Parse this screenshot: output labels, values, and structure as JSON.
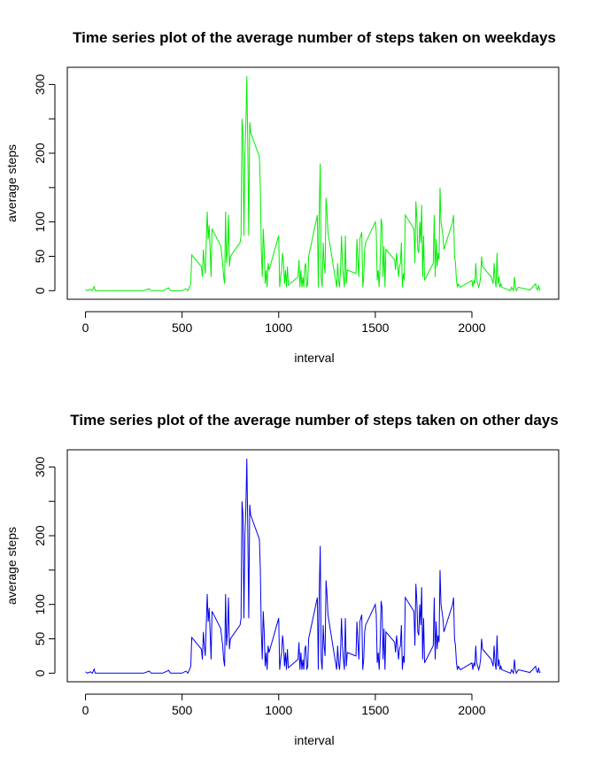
{
  "chart_data": [
    {
      "type": "line",
      "title": "Time series plot of the average number of steps taken on weekdays",
      "xlabel": "interval",
      "ylabel": "average steps",
      "xlim": [
        -94.2,
        2449.2
      ],
      "ylim": [
        -12.5,
        325
      ],
      "xticks": [
        0,
        500,
        1000,
        1500,
        2000
      ],
      "yticks": [
        0,
        50,
        100,
        {
          "value": 150,
          "label": null
        },
        200,
        {
          "value": 250,
          "label": null
        },
        300
      ],
      "series": [
        {
          "color": "#00ee00",
          "x": [
            0,
            10,
            25,
            35,
            45,
            50,
            100,
            200,
            300,
            330,
            340,
            400,
            430,
            440,
            500,
            520,
            530,
            545,
            550,
            600,
            605,
            610,
            615,
            620,
            630,
            635,
            640,
            645,
            650,
            655,
            700,
            710,
            715,
            720,
            725,
            730,
            735,
            740,
            745,
            750,
            800,
            805,
            810,
            815,
            820,
            825,
            830,
            835,
            840,
            845,
            850,
            855,
            900,
            905,
            910,
            915,
            920,
            925,
            930,
            935,
            940,
            945,
            950,
            1000,
            1005,
            1010,
            1015,
            1020,
            1025,
            1030,
            1035,
            1040,
            1045,
            1050,
            1100,
            1105,
            1110,
            1115,
            1120,
            1125,
            1130,
            1135,
            1140,
            1145,
            1150,
            1155,
            1200,
            1205,
            1210,
            1215,
            1220,
            1225,
            1230,
            1235,
            1240,
            1245,
            1250,
            1255,
            1300,
            1305,
            1310,
            1315,
            1320,
            1325,
            1330,
            1335,
            1340,
            1345,
            1350,
            1355,
            1400,
            1405,
            1410,
            1415,
            1420,
            1425,
            1430,
            1435,
            1440,
            1445,
            1450,
            1500,
            1505,
            1510,
            1515,
            1520,
            1525,
            1530,
            1535,
            1540,
            1545,
            1550,
            1555,
            1600,
            1605,
            1610,
            1615,
            1620,
            1625,
            1630,
            1635,
            1640,
            1645,
            1650,
            1655,
            1700,
            1705,
            1710,
            1715,
            1720,
            1725,
            1730,
            1735,
            1740,
            1745,
            1750,
            1755,
            1800,
            1805,
            1810,
            1815,
            1820,
            1825,
            1830,
            1835,
            1840,
            1845,
            1850,
            1855,
            1900,
            1905,
            1910,
            1915,
            1920,
            1925,
            1930,
            1940,
            2000,
            2005,
            2010,
            2015,
            2020,
            2025,
            2030,
            2035,
            2040,
            2045,
            2050,
            2055,
            2100,
            2105,
            2110,
            2115,
            2120,
            2125,
            2130,
            2135,
            2140,
            2145,
            2150,
            2155,
            2200,
            2205,
            2215,
            2220,
            2225,
            2230,
            2240,
            2300,
            2330,
            2335,
            2340,
            2345,
            2350,
            2355
          ],
          "values": [
            2,
            0,
            2,
            0,
            6,
            0,
            0,
            0,
            0,
            3,
            0,
            0,
            4,
            0,
            0,
            3,
            0,
            10,
            52,
            35,
            20,
            60,
            40,
            25,
            115,
            75,
            95,
            60,
            20,
            90,
            65,
            40,
            20,
            10,
            115,
            40,
            60,
            110,
            35,
            50,
            70,
            80,
            250,
            230,
            80,
            200,
            240,
            312,
            210,
            80,
            245,
            230,
            195,
            150,
            60,
            20,
            90,
            60,
            10,
            30,
            5,
            40,
            30,
            80,
            5,
            20,
            30,
            55,
            40,
            10,
            30,
            5,
            35,
            8,
            20,
            45,
            5,
            30,
            5,
            20,
            5,
            35,
            40,
            5,
            10,
            50,
            110,
            5,
            120,
            185,
            20,
            5,
            70,
            40,
            25,
            135,
            115,
            85,
            5,
            40,
            15,
            5,
            30,
            80,
            40,
            20,
            5,
            80,
            10,
            30,
            25,
            75,
            45,
            20,
            75,
            80,
            85,
            5,
            20,
            60,
            70,
            100,
            85,
            15,
            30,
            5,
            40,
            105,
            95,
            20,
            65,
            5,
            60,
            45,
            30,
            55,
            40,
            20,
            35,
            40,
            70,
            5,
            25,
            15,
            110,
            90,
            40,
            130,
            105,
            60,
            55,
            100,
            70,
            125,
            20,
            80,
            15,
            40,
            110,
            20,
            75,
            35,
            55,
            45,
            150,
            100,
            90,
            80,
            60,
            100,
            110,
            50,
            40,
            15,
            5,
            10,
            5,
            15,
            5,
            15,
            10,
            40,
            15,
            10,
            5,
            10,
            20,
            50,
            35,
            20,
            15,
            10,
            40,
            15,
            5,
            55,
            10,
            20,
            5,
            10,
            5,
            0,
            5,
            0,
            20,
            5,
            0,
            5,
            1,
            10,
            3,
            1,
            8,
            1,
            2
          ]
        }
      ]
    },
    {
      "type": "line",
      "title": "Time series plot of the average number of steps taken on other days",
      "xlabel": "interval",
      "ylabel": "average steps",
      "xlim": [
        -94.2,
        2449.2
      ],
      "ylim": [
        -12.5,
        325
      ],
      "xticks": [
        0,
        500,
        1000,
        1500,
        2000
      ],
      "yticks": [
        0,
        50,
        100,
        {
          "value": 150,
          "label": null
        },
        200,
        {
          "value": 250,
          "label": null
        },
        300
      ],
      "series": [
        {
          "color": "#0000ee",
          "x": [
            0,
            10,
            25,
            35,
            45,
            50,
            100,
            200,
            300,
            330,
            340,
            400,
            430,
            440,
            500,
            520,
            530,
            545,
            550,
            600,
            605,
            610,
            615,
            620,
            630,
            635,
            640,
            645,
            650,
            655,
            700,
            710,
            715,
            720,
            725,
            730,
            735,
            740,
            745,
            750,
            800,
            805,
            810,
            815,
            820,
            825,
            830,
            835,
            840,
            845,
            850,
            855,
            900,
            905,
            910,
            915,
            920,
            925,
            930,
            935,
            940,
            945,
            950,
            1000,
            1005,
            1010,
            1015,
            1020,
            1025,
            1030,
            1035,
            1040,
            1045,
            1050,
            1100,
            1105,
            1110,
            1115,
            1120,
            1125,
            1130,
            1135,
            1140,
            1145,
            1150,
            1155,
            1200,
            1205,
            1210,
            1215,
            1220,
            1225,
            1230,
            1235,
            1240,
            1245,
            1250,
            1255,
            1300,
            1305,
            1310,
            1315,
            1320,
            1325,
            1330,
            1335,
            1340,
            1345,
            1350,
            1355,
            1400,
            1405,
            1410,
            1415,
            1420,
            1425,
            1430,
            1435,
            1440,
            1445,
            1450,
            1500,
            1505,
            1510,
            1515,
            1520,
            1525,
            1530,
            1535,
            1540,
            1545,
            1550,
            1555,
            1600,
            1605,
            1610,
            1615,
            1620,
            1625,
            1630,
            1635,
            1640,
            1645,
            1650,
            1655,
            1700,
            1705,
            1710,
            1715,
            1720,
            1725,
            1730,
            1735,
            1740,
            1745,
            1750,
            1755,
            1800,
            1805,
            1810,
            1815,
            1820,
            1825,
            1830,
            1835,
            1840,
            1845,
            1850,
            1855,
            1900,
            1905,
            1910,
            1915,
            1920,
            1925,
            1930,
            1940,
            2000,
            2005,
            2010,
            2015,
            2020,
            2025,
            2030,
            2035,
            2040,
            2045,
            2050,
            2055,
            2100,
            2105,
            2110,
            2115,
            2120,
            2125,
            2130,
            2135,
            2140,
            2145,
            2150,
            2155,
            2200,
            2205,
            2215,
            2220,
            2225,
            2230,
            2240,
            2300,
            2330,
            2335,
            2340,
            2345,
            2350,
            2355
          ],
          "values": [
            2,
            0,
            2,
            0,
            6,
            0,
            0,
            0,
            0,
            3,
            0,
            0,
            4,
            0,
            0,
            3,
            0,
            10,
            52,
            35,
            20,
            60,
            40,
            25,
            115,
            75,
            95,
            60,
            20,
            90,
            65,
            40,
            20,
            10,
            115,
            40,
            60,
            110,
            35,
            50,
            70,
            80,
            250,
            230,
            80,
            200,
            240,
            312,
            210,
            80,
            245,
            230,
            195,
            150,
            60,
            20,
            90,
            60,
            10,
            30,
            5,
            40,
            30,
            80,
            5,
            20,
            30,
            55,
            40,
            10,
            30,
            5,
            35,
            8,
            20,
            45,
            5,
            30,
            5,
            20,
            5,
            35,
            40,
            5,
            10,
            50,
            110,
            5,
            120,
            185,
            20,
            5,
            70,
            40,
            25,
            135,
            115,
            85,
            5,
            40,
            15,
            5,
            30,
            80,
            40,
            20,
            5,
            80,
            10,
            30,
            25,
            75,
            45,
            20,
            75,
            80,
            85,
            5,
            20,
            60,
            70,
            100,
            85,
            15,
            30,
            5,
            40,
            105,
            95,
            20,
            65,
            5,
            60,
            45,
            30,
            55,
            40,
            20,
            35,
            40,
            70,
            5,
            25,
            15,
            110,
            90,
            40,
            130,
            105,
            60,
            55,
            100,
            70,
            125,
            20,
            80,
            15,
            40,
            110,
            20,
            75,
            35,
            55,
            45,
            150,
            100,
            90,
            80,
            60,
            100,
            110,
            50,
            40,
            15,
            5,
            10,
            5,
            15,
            5,
            15,
            10,
            40,
            15,
            10,
            5,
            10,
            20,
            50,
            35,
            20,
            15,
            10,
            40,
            15,
            5,
            55,
            10,
            20,
            5,
            10,
            5,
            0,
            5,
            0,
            20,
            5,
            0,
            5,
            1,
            10,
            3,
            1,
            8,
            1,
            2
          ]
        }
      ]
    }
  ]
}
